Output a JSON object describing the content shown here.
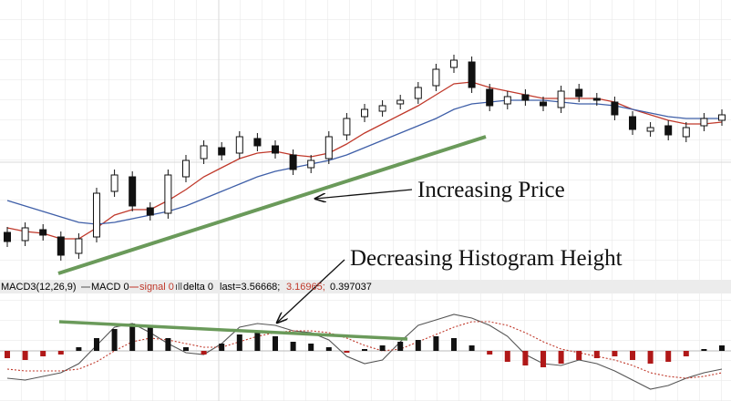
{
  "chart_data": [
    {
      "type": "candlestick",
      "open": [
        55,
        46,
        58,
        50,
        32,
        50,
        100,
        116,
        82,
        76,
        116,
        136,
        148,
        142,
        158,
        150,
        140,
        126,
        136,
        162,
        182,
        188,
        196,
        202,
        216,
        236,
        242,
        212,
        196,
        206,
        198,
        192,
        212,
        202,
        198,
        182,
        166,
        172,
        160,
        172,
        178
      ],
      "high": [
        61,
        66,
        64,
        56,
        54,
        104,
        124,
        122,
        88,
        124,
        140,
        156,
        154,
        166,
        164,
        156,
        146,
        140,
        166,
        186,
        196,
        200,
        206,
        220,
        240,
        250,
        248,
        218,
        210,
        212,
        204,
        216,
        218,
        208,
        204,
        188,
        176,
        178,
        176,
        186,
        190
      ],
      "low": [
        39,
        40,
        46,
        24,
        26,
        44,
        94,
        78,
        68,
        70,
        110,
        130,
        134,
        136,
        144,
        136,
        118,
        120,
        130,
        156,
        176,
        182,
        190,
        196,
        210,
        230,
        208,
        188,
        190,
        194,
        188,
        186,
        198,
        194,
        178,
        162,
        160,
        156,
        154,
        166,
        172
      ],
      "close": [
        45,
        60,
        52,
        30,
        48,
        98,
        118,
        84,
        74,
        118,
        134,
        150,
        140,
        160,
        150,
        142,
        124,
        134,
        160,
        180,
        190,
        194,
        200,
        214,
        234,
        244,
        214,
        194,
        204,
        200,
        194,
        210,
        204,
        200,
        184,
        168,
        170,
        162,
        170,
        180,
        184
      ],
      "series": [
        {
          "color": "#c0392b",
          "values": [
            60,
            56,
            54,
            48,
            48,
            60,
            74,
            80,
            80,
            90,
            102,
            116,
            126,
            136,
            142,
            144,
            140,
            138,
            142,
            152,
            164,
            174,
            184,
            194,
            206,
            218,
            220,
            214,
            210,
            206,
            202,
            202,
            202,
            202,
            198,
            190,
            184,
            178,
            174,
            174,
            176
          ]
        },
        {
          "color": "#3f5fa8",
          "values": [
            90,
            84,
            78,
            72,
            66,
            64,
            66,
            70,
            74,
            78,
            84,
            92,
            100,
            108,
            116,
            122,
            126,
            130,
            134,
            140,
            148,
            156,
            164,
            172,
            180,
            190,
            196,
            198,
            200,
            200,
            200,
            198,
            196,
            196,
            194,
            190,
            186,
            182,
            180,
            180,
            180
          ]
        }
      ],
      "ylim": [
        0,
        310
      ],
      "annotations": [
        "Increasing Price",
        "Decreasing Histogram Height"
      ]
    },
    {
      "type": "macd",
      "title": "MACD3(12,26,9)",
      "series": [
        {
          "name": "MACD 0",
          "color": "#555555",
          "values": [
            -30,
            -32,
            -28,
            -24,
            -14,
            6,
            26,
            30,
            20,
            8,
            -2,
            -4,
            8,
            26,
            30,
            28,
            22,
            20,
            12,
            -6,
            -14,
            -10,
            10,
            28,
            34,
            40,
            36,
            28,
            16,
            -4,
            -14,
            -16,
            -10,
            -14,
            -22,
            -32,
            -42,
            -38,
            -30,
            -24,
            -20
          ]
        },
        {
          "name": "signal 0",
          "color": "#c0392b",
          "values": [
            -20,
            -22,
            -22,
            -22,
            -20,
            -12,
            0,
            10,
            14,
            12,
            8,
            4,
            4,
            10,
            16,
            20,
            22,
            22,
            20,
            14,
            6,
            0,
            2,
            10,
            18,
            26,
            32,
            32,
            28,
            20,
            10,
            2,
            -2,
            -6,
            -10,
            -16,
            -24,
            -28,
            -30,
            -28,
            -24
          ]
        },
        {
          "name": "delta 0",
          "color": "#111111",
          "negative_color": "#b01818",
          "values": [
            -8,
            -10,
            -6,
            -4,
            4,
            14,
            24,
            30,
            26,
            14,
            4,
            -4,
            8,
            18,
            20,
            16,
            10,
            8,
            4,
            -2,
            2,
            6,
            10,
            12,
            16,
            14,
            6,
            -4,
            -12,
            -16,
            -18,
            -14,
            -10,
            -8,
            -6,
            -10,
            -14,
            -12,
            -6,
            2,
            6
          ]
        }
      ],
      "readout": [
        "last=3.56668;",
        "3.16965;",
        "0.397037"
      ],
      "ylim": [
        -55,
        65
      ]
    }
  ]
}
